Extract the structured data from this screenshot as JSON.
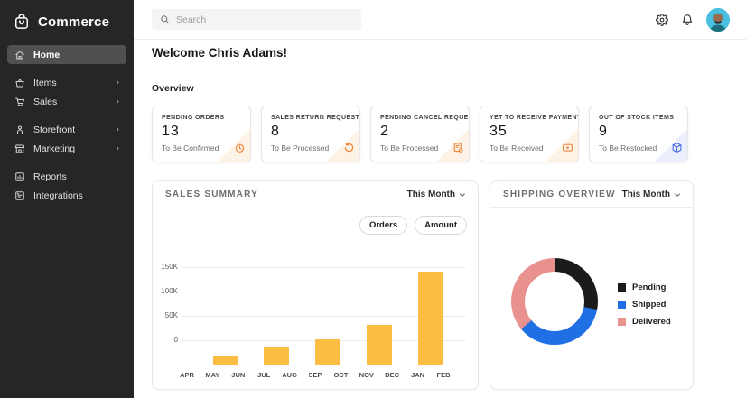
{
  "app": {
    "name": "Commerce"
  },
  "sidebar": {
    "logo_text": "Commerce",
    "items": [
      {
        "label": "Home",
        "icon": "home-icon",
        "active": true,
        "has_submenu": false
      },
      {
        "label": "Items",
        "icon": "basket-icon",
        "active": false,
        "has_submenu": true
      },
      {
        "label": "Sales",
        "icon": "cart-icon",
        "active": false,
        "has_submenu": true
      },
      {
        "label": "Storefront",
        "icon": "person-icon",
        "active": false,
        "has_submenu": true
      },
      {
        "label": "Marketing",
        "icon": "store-icon",
        "active": false,
        "has_submenu": true
      },
      {
        "label": "Reports",
        "icon": "bar-chart-icon",
        "active": false,
        "has_submenu": false
      },
      {
        "label": "Integrations",
        "icon": "integrations-icon",
        "active": false,
        "has_submenu": false
      }
    ]
  },
  "topbar": {
    "search_placeholder": "Search",
    "icons": [
      "gear-icon",
      "bell-icon",
      "avatar"
    ]
  },
  "main": {
    "welcome": "Welcome Chris Adams!",
    "section_title": "Overview",
    "stat_cards": [
      {
        "label": "PENDING ORDERS",
        "value": "13",
        "sub": "To Be Confirmed",
        "icon": "stopwatch-icon",
        "accent_color": "#ee8438",
        "corner_tint": "#fdf2e6"
      },
      {
        "label": "SALES RETURN REQUESTS",
        "value": "8",
        "sub": "To Be Processed",
        "icon": "refresh-icon",
        "accent_color": "#ee8438",
        "corner_tint": "#fdf2e6"
      },
      {
        "label": "PENDING CANCEL REQUESTS",
        "value": "2",
        "sub": "To Be Processed",
        "icon": "document-gear-icon",
        "accent_color": "#ee8438",
        "corner_tint": "#fdf2e6"
      },
      {
        "label": "YET TO RECEIVE PAYMENTS",
        "value": "35",
        "sub": "To Be Received",
        "icon": "payment-icon",
        "accent_color": "#ee8438",
        "corner_tint": "#fdf2e6"
      },
      {
        "label": "OUT OF STOCK ITEMS",
        "value": "9",
        "sub": "To Be Restocked",
        "icon": "box-icon",
        "accent_color": "#4a6de0",
        "corner_tint": "#eaeffb"
      }
    ]
  },
  "chart_data": [
    {
      "type": "bar",
      "title": "SALES SUMMARY",
      "period_selector": "This Month",
      "series_toggles": [
        "Orders",
        "Amount"
      ],
      "bar_color": "#fcbd45",
      "x_tick_labels": [
        "APR",
        "MAY",
        "JUN",
        "JUL",
        "AUG",
        "SEP",
        "OCT",
        "NOV",
        "DEC",
        "JAN",
        "FEB"
      ],
      "y_ticks": [
        {
          "label": "150K",
          "value": 150000
        },
        {
          "label": "100K",
          "value": 100000
        },
        {
          "label": "50K",
          "value": 50000
        },
        {
          "label": "0",
          "value": 0
        }
      ],
      "ylim": [
        -50000,
        172000
      ],
      "grid": true,
      "bars": [
        {
          "span": "MAY-JUN",
          "value": -32000
        },
        {
          "span": "JUL-AUG",
          "value": -14000
        },
        {
          "span": "SEP-OCT",
          "value": 2000
        },
        {
          "span": "NOV-DEC",
          "value": 32000
        },
        {
          "span": "JAN-FEB",
          "value": 141000
        }
      ],
      "note": "Bars are drawn from the axis minimum (-50K); values are read against the 0 gridline."
    },
    {
      "type": "donut",
      "title": "SHIPPING OVERVIEW",
      "period_selector": "This Month",
      "legend_position": "right",
      "slices": [
        {
          "label": "Pending",
          "pct": 28,
          "color": "#1b1b1b"
        },
        {
          "label": "Shipped",
          "pct": 36,
          "color": "#1f6fe5"
        },
        {
          "label": "Delivered",
          "pct": 36,
          "color": "#e8918e"
        }
      ]
    }
  ]
}
